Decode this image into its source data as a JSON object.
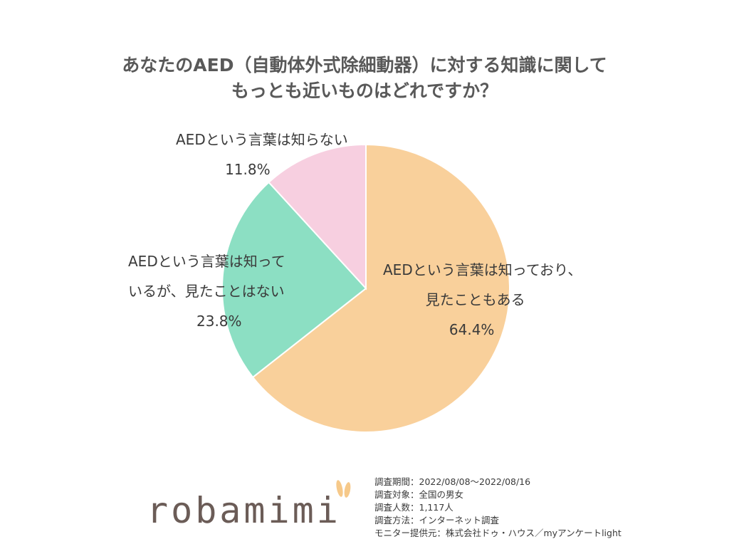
{
  "title": {
    "line1": "あなたのAED（自動体外式除細動器）に対する知識に関して",
    "line2": "もっとも近いものはどれですか？"
  },
  "chart_data": {
    "type": "pie",
    "title": "あなたのAED（自動体外式除細動器）に対する知識に関して もっとも近いものはどれですか？",
    "slices": [
      {
        "label_lines": [
          "AEDという言葉は知っており、",
          "見たこともある"
        ],
        "value": 64.4,
        "value_label": "64.4%",
        "color": "#f9d09b"
      },
      {
        "label_lines": [
          "AEDという言葉は知って",
          "いるが、見たことはない"
        ],
        "value": 23.8,
        "value_label": "23.8%",
        "color": "#8cdfc3"
      },
      {
        "label_lines": [
          "AEDという言葉は知らない"
        ],
        "value": 11.8,
        "value_label": "11.8%",
        "color": "#f7cfe0"
      }
    ]
  },
  "footer": {
    "logo": "robamimi",
    "info": [
      "調査期間：2022/08/08～2022/08/16",
      "調査対象：全国の男女",
      "調査人数：1,117人",
      "調査方法：インターネット調査",
      "モニター提供元：株式会社ドゥ・ハウス／myアンケートlight"
    ],
    "logo_color": "#6b5c57",
    "ear_color": "#f6c98a"
  }
}
